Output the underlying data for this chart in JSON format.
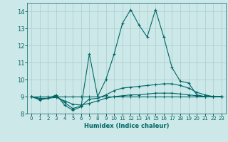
{
  "xlabel": "Humidex (Indice chaleur)",
  "bg_color": "#cce8e8",
  "grid_color": "#aacccc",
  "line_color": "#006666",
  "xlim": [
    -0.5,
    23.5
  ],
  "ylim": [
    8.0,
    14.5
  ],
  "yticks": [
    8,
    9,
    10,
    11,
    12,
    13,
    14
  ],
  "xticks": [
    0,
    1,
    2,
    3,
    4,
    5,
    6,
    7,
    8,
    9,
    10,
    11,
    12,
    13,
    14,
    15,
    16,
    17,
    18,
    19,
    20,
    21,
    22,
    23
  ],
  "lines": [
    {
      "x": [
        0,
        1,
        2,
        3,
        4,
        5,
        6,
        7,
        8,
        9,
        10,
        11,
        12,
        13,
        14,
        15,
        16,
        17,
        18,
        19,
        20,
        21,
        22,
        23
      ],
      "y": [
        9.0,
        8.8,
        8.9,
        9.1,
        8.5,
        8.2,
        8.4,
        11.5,
        9.0,
        10.0,
        11.5,
        13.3,
        14.1,
        13.2,
        12.5,
        14.1,
        12.5,
        10.7,
        9.9,
        9.8,
        9.1,
        9.0,
        9.0,
        9.0
      ]
    },
    {
      "x": [
        0,
        1,
        2,
        3,
        4,
        5,
        6,
        7,
        8,
        9,
        10,
        11,
        12,
        13,
        14,
        15,
        16,
        17,
        18,
        19,
        20,
        21,
        22,
        23
      ],
      "y": [
        9.0,
        8.85,
        8.9,
        9.05,
        8.65,
        8.3,
        8.45,
        8.85,
        8.9,
        9.1,
        9.35,
        9.5,
        9.55,
        9.6,
        9.65,
        9.7,
        9.75,
        9.75,
        9.65,
        9.5,
        9.25,
        9.1,
        9.0,
        9.0
      ]
    },
    {
      "x": [
        0,
        1,
        2,
        3,
        4,
        5,
        6,
        7,
        8,
        9,
        10,
        11,
        12,
        13,
        14,
        15,
        16,
        17,
        18,
        19,
        20,
        21,
        22,
        23
      ],
      "y": [
        9.0,
        8.9,
        8.9,
        8.95,
        8.75,
        8.55,
        8.5,
        8.6,
        8.75,
        8.9,
        9.0,
        9.05,
        9.1,
        9.1,
        9.15,
        9.2,
        9.2,
        9.2,
        9.15,
        9.1,
        9.05,
        9.0,
        9.0,
        9.0
      ]
    },
    {
      "x": [
        0,
        1,
        2,
        3,
        4,
        5,
        6,
        7,
        8,
        9,
        10,
        11,
        12,
        13,
        14,
        15,
        16,
        17,
        18,
        19,
        20,
        21,
        22,
        23
      ],
      "y": [
        9.0,
        9.0,
        9.0,
        9.0,
        9.0,
        9.0,
        9.0,
        9.0,
        9.0,
        9.0,
        9.0,
        9.0,
        9.0,
        9.0,
        9.0,
        9.0,
        9.0,
        9.0,
        9.0,
        9.0,
        9.0,
        9.0,
        9.0,
        9.0
      ]
    }
  ]
}
